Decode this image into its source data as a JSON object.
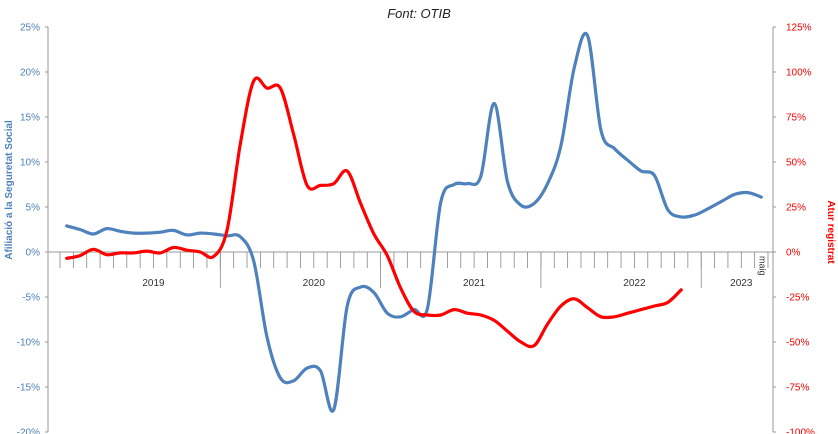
{
  "chart_data": {
    "type": "line",
    "source_text": "Font: OTIB",
    "left_axis": {
      "label": "Afiliació a la Seguretat Social",
      "ylim": [
        -20,
        25
      ],
      "ticks": [
        "25%",
        "20%",
        "15%",
        "10%",
        "5%",
        "0%",
        "-5%",
        "-10%",
        "-15%",
        "-20%"
      ],
      "tick_values": [
        25,
        20,
        15,
        10,
        5,
        0,
        -5,
        -10,
        -15,
        -20
      ],
      "color": "#4f81bd"
    },
    "right_axis": {
      "label": "Atur registrat",
      "ylim": [
        -100,
        125
      ],
      "ticks": [
        "125%",
        "100%",
        "75%",
        "50%",
        "25%",
        "0%",
        "-25%",
        "-50%",
        "-75%",
        "-100%"
      ],
      "tick_values": [
        125,
        100,
        75,
        50,
        25,
        0,
        -25,
        -50,
        -75,
        -100
      ],
      "color": "#ff0000"
    },
    "x_axis": {
      "type": "monthly",
      "start": "2019-01",
      "months": 53,
      "year_labels": [
        "2019",
        "2020",
        "2021",
        "2022",
        "2023"
      ],
      "year_label_months": [
        6.5,
        18.5,
        30.5,
        42.5,
        50.5
      ],
      "year_separators": [
        11.5,
        23.5,
        35.5,
        47.5
      ],
      "edge_label": "maig"
    },
    "grid": false,
    "series": [
      {
        "name": "Afiliació a la Seguretat Social",
        "axis": "left",
        "color": "#4f81bd",
        "values": [
          2.9,
          2.5,
          2.0,
          2.6,
          2.3,
          2.1,
          2.1,
          2.2,
          2.4,
          1.9,
          2.1,
          2.0,
          1.8,
          1.7,
          -1.0,
          -9.5,
          -14.0,
          -14.3,
          -12.9,
          -13.2,
          -17.5,
          -6.0,
          -3.9,
          -4.5,
          -6.8,
          -7.2,
          -6.4,
          -6.3,
          5.5,
          7.5,
          7.6,
          8.4,
          16.5,
          7.8,
          5.2,
          5.4,
          7.6,
          11.8,
          20.5,
          24.0,
          13.5,
          11.5,
          10.2,
          9.0,
          8.5,
          4.7,
          3.9,
          4.1,
          4.8,
          5.6,
          6.4,
          6.6,
          6.1
        ]
      },
      {
        "name": "Atur registrat",
        "axis": "right",
        "color": "#ff0000",
        "values": [
          -3.5,
          -2.0,
          1.5,
          -1.5,
          -0.5,
          -0.5,
          0.5,
          -0.5,
          2.5,
          1.0,
          0.0,
          -2.5,
          12.0,
          60.0,
          95.0,
          91.0,
          91.0,
          65.0,
          37.0,
          37.0,
          38.0,
          45.0,
          27.0,
          10.0,
          -2.0,
          -20.0,
          -33.0,
          -35.0,
          -35.0,
          -32.0,
          -34.0,
          -35.0,
          -38.0,
          -44.0,
          -50.0,
          -52.0,
          -40.0,
          -30.0,
          -26.0,
          -31.0,
          -36.0,
          -36.0,
          -34.0,
          -32.0,
          -30.0,
          -28.0,
          -21.0
        ]
      }
    ]
  }
}
